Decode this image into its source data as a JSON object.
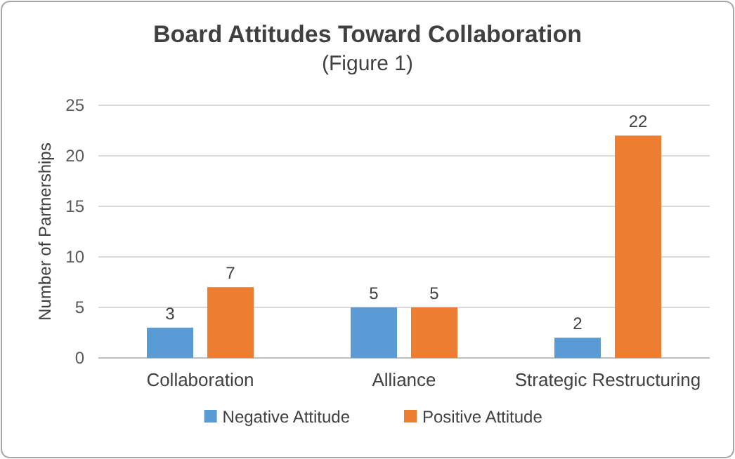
{
  "chart_data": {
    "type": "bar",
    "title": "Board Attitudes Toward Collaboration",
    "subtitle": "(Figure 1)",
    "ylabel": "Number of Partnerships",
    "categories": [
      "Collaboration",
      "Alliance",
      "Strategic Restructuring"
    ],
    "series": [
      {
        "name": "Negative Attitude",
        "color": "#5b9bd5",
        "values": [
          3,
          5,
          2
        ]
      },
      {
        "name": "Positive Attitude",
        "color": "#ed7d31",
        "values": [
          7,
          5,
          22
        ]
      }
    ],
    "ylim": [
      0,
      25
    ],
    "yticks": [
      0,
      5,
      10,
      15,
      20,
      25
    ],
    "grid": "y",
    "legend": "bottom",
    "data_labels": true
  }
}
